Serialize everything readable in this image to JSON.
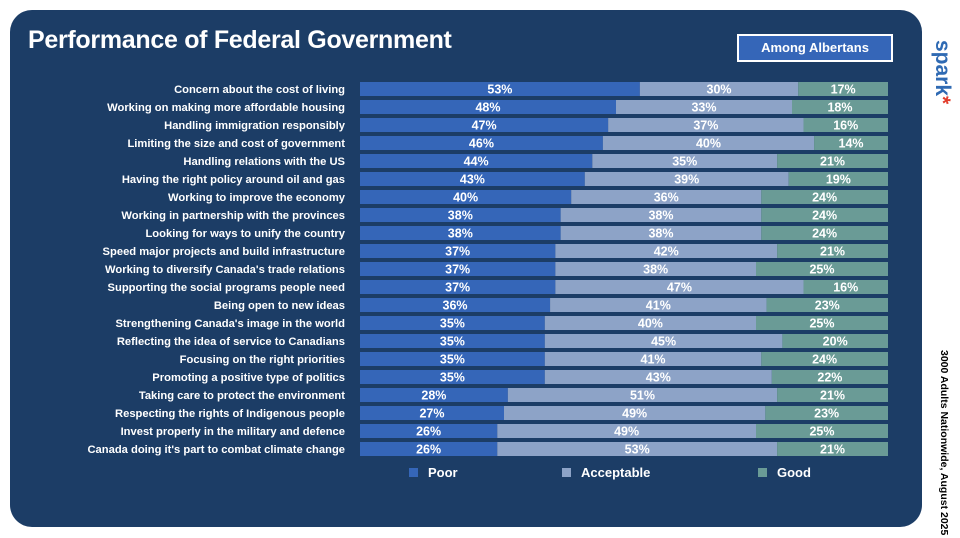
{
  "title": "Performance of Federal Government",
  "badge": "Among Albertans",
  "brand": {
    "name": "spark",
    "mark": "*"
  },
  "side_note": "3000 Adults Nationwide, August 2025",
  "colors": {
    "background": "#1c3d66",
    "poor": "#3566b8",
    "acceptable": "#8da3c7",
    "good": "#6a9b96"
  },
  "chart_data": {
    "type": "bar",
    "orientation": "horizontal",
    "stacked": true,
    "normalized": true,
    "title": "Performance of Federal Government",
    "categories": [
      "Concern about the cost of living",
      "Working on making more affordable housing",
      "Handling immigration responsibly",
      "Limiting the size and cost of government",
      "Handling relations with the US",
      "Having the right policy around oil and gas",
      "Working to improve the economy",
      "Working in partnership with the provinces",
      "Looking for ways to unify the country",
      "Speed major projects and build infrastructure",
      "Working to diversify Canada's trade relations",
      "Supporting the social programs people need",
      "Being open to new ideas",
      "Strengthening Canada's image in the world",
      "Reflecting the idea of service to Canadians",
      "Focusing on the right priorities",
      "Promoting a positive type of politics",
      "Taking care to protect the environment",
      "Respecting the rights of Indigenous people",
      "Invest properly in the military and defence",
      "Canada doing it's part to combat climate change"
    ],
    "series": [
      {
        "name": "Poor",
        "color": "#3566b8",
        "values": [
          53,
          48,
          47,
          46,
          44,
          43,
          40,
          38,
          38,
          37,
          37,
          37,
          36,
          35,
          35,
          35,
          35,
          28,
          27,
          26,
          26
        ]
      },
      {
        "name": "Acceptable",
        "color": "#8da3c7",
        "values": [
          30,
          33,
          37,
          40,
          35,
          39,
          36,
          38,
          38,
          42,
          38,
          47,
          41,
          40,
          45,
          41,
          43,
          51,
          49,
          49,
          53
        ]
      },
      {
        "name": "Good",
        "color": "#6a9b96",
        "values": [
          17,
          18,
          16,
          14,
          21,
          19,
          24,
          24,
          24,
          21,
          25,
          16,
          23,
          25,
          20,
          24,
          22,
          21,
          23,
          25,
          21
        ]
      }
    ],
    "value_suffix": "%",
    "legend_position": "bottom",
    "grid": false
  }
}
